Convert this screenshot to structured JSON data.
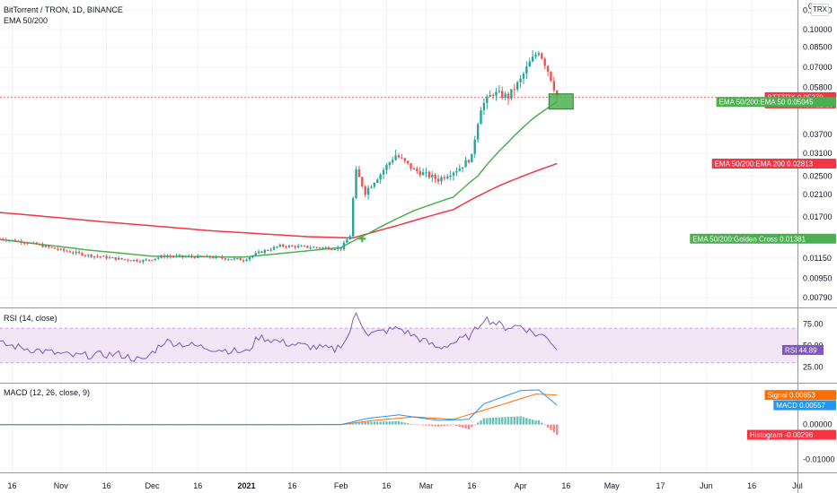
{
  "header": {
    "symbol_title": "BitTorrent / TRON, 1D, BINANCE",
    "indicator_label": "EMA 50/200",
    "currency": "TRX"
  },
  "colors": {
    "up": "#26a69a",
    "down": "#ef5350",
    "ema50": "#4caf50",
    "ema200": "#f23645",
    "rsi_line": "#7e57c2",
    "rsi_band": "#f3e5f5",
    "macd": "#2196f3",
    "signal": "#ff6d00",
    "hist_up": "#26a69a",
    "hist_down": "#ef5350",
    "last_price": "#ef5350",
    "signal_box": "#4caf50",
    "tag_green": "#4caf50",
    "tag_red": "#f23645",
    "tag_blue": "#2196f3",
    "tag_orange": "#ff6d00",
    "tag_purple": "#7e57c2"
  },
  "chart_data": [
    {
      "type": "candlestick",
      "panel": "price",
      "log_scale": true,
      "ylim": [
        0.0072,
        0.1325
      ],
      "y_ticks": [
        "0.12000",
        "0.10000",
        "0.08500",
        "0.07000",
        "0.05800",
        "0.03700",
        "0.03100",
        "0.02500",
        "0.02100",
        "0.01700",
        "0.01150",
        "0.00950",
        "0.00790"
      ],
      "y_tick_values": [
        0.12,
        0.1,
        0.085,
        0.07,
        0.058,
        0.037,
        0.031,
        0.025,
        0.021,
        0.017,
        0.0115,
        0.0095,
        0.0079
      ],
      "top_tick_label": "0.",
      "x_ticks": [
        "16",
        "Nov",
        "16",
        "Dec",
        "16",
        "2021",
        "16",
        "Feb",
        "16",
        "Mar",
        "16",
        "Apr",
        "16",
        "May",
        "17",
        "Jun",
        "16",
        "Jul"
      ],
      "x_tick_dates": [
        "2020-10-16",
        "2020-11-01",
        "2020-11-16",
        "2020-12-01",
        "2020-12-16",
        "2021-01-01",
        "2021-01-16",
        "2021-02-01",
        "2021-02-16",
        "2021-03-01",
        "2021-03-16",
        "2021-04-01",
        "2021-04-16",
        "2021-05-01",
        "2021-05-17",
        "2021-06-01",
        "2021-06-16",
        "2021-07-01"
      ],
      "x_range": [
        "2020-10-12",
        "2021-07-01"
      ],
      "last_date": "2021-04-13",
      "ohlc_anchors": [
        {
          "date": "2020-10-12",
          "close": 0.0138
        },
        {
          "date": "2020-10-20",
          "close": 0.0134
        },
        {
          "date": "2020-11-01",
          "close": 0.0124
        },
        {
          "date": "2020-11-10",
          "close": 0.0118
        },
        {
          "date": "2020-11-20",
          "close": 0.0114
        },
        {
          "date": "2020-11-28",
          "close": 0.0112
        },
        {
          "date": "2020-12-05",
          "close": 0.0117
        },
        {
          "date": "2020-12-20",
          "close": 0.0116
        },
        {
          "date": "2020-12-31",
          "close": 0.0113
        },
        {
          "date": "2021-01-05",
          "close": 0.0121
        },
        {
          "date": "2021-01-12",
          "close": 0.0129
        },
        {
          "date": "2021-01-25",
          "close": 0.0127
        },
        {
          "date": "2021-02-01",
          "close": 0.0126
        },
        {
          "date": "2021-02-04",
          "close": 0.0142
        },
        {
          "date": "2021-02-06",
          "close": 0.026
        },
        {
          "date": "2021-02-09",
          "close": 0.0215
        },
        {
          "date": "2021-02-14",
          "close": 0.0255
        },
        {
          "date": "2021-02-19",
          "close": 0.0305
        },
        {
          "date": "2021-02-25",
          "close": 0.0265
        },
        {
          "date": "2021-03-05",
          "close": 0.0242
        },
        {
          "date": "2021-03-12",
          "close": 0.027
        },
        {
          "date": "2021-03-16",
          "close": 0.03
        },
        {
          "date": "2021-03-19",
          "close": 0.048
        },
        {
          "date": "2021-03-23",
          "close": 0.055
        },
        {
          "date": "2021-03-28",
          "close": 0.053
        },
        {
          "date": "2021-04-01",
          "close": 0.062
        },
        {
          "date": "2021-04-04",
          "close": 0.073
        },
        {
          "date": "2021-04-07",
          "close": 0.082
        },
        {
          "date": "2021-04-10",
          "close": 0.068
        },
        {
          "date": "2021-04-13",
          "close": 0.05279
        }
      ],
      "ema50": [
        {
          "date": "2020-10-12",
          "value": 0.0137
        },
        {
          "date": "2020-11-10",
          "value": 0.0124
        },
        {
          "date": "2020-12-01",
          "value": 0.0117
        },
        {
          "date": "2020-12-31",
          "value": 0.0116
        },
        {
          "date": "2021-01-15",
          "value": 0.0121
        },
        {
          "date": "2021-02-01",
          "value": 0.0127
        },
        {
          "date": "2021-02-10",
          "value": 0.0145
        },
        {
          "date": "2021-02-25",
          "value": 0.018
        },
        {
          "date": "2021-03-10",
          "value": 0.0205
        },
        {
          "date": "2021-03-18",
          "value": 0.025
        },
        {
          "date": "2021-03-28",
          "value": 0.0345
        },
        {
          "date": "2021-04-05",
          "value": 0.043
        },
        {
          "date": "2021-04-13",
          "value": 0.05045
        }
      ],
      "ema200": [
        {
          "date": "2020-10-12",
          "value": 0.0177
        },
        {
          "date": "2020-11-15",
          "value": 0.0162
        },
        {
          "date": "2020-12-20",
          "value": 0.0149
        },
        {
          "date": "2021-01-20",
          "value": 0.0141
        },
        {
          "date": "2021-02-05",
          "value": 0.0139
        },
        {
          "date": "2021-02-20",
          "value": 0.0157
        },
        {
          "date": "2021-03-10",
          "value": 0.0182
        },
        {
          "date": "2021-03-25",
          "value": 0.0228
        },
        {
          "date": "2021-04-13",
          "value": 0.02813
        }
      ],
      "golden_cross": {
        "date": "2021-02-08",
        "value": 0.01381
      },
      "signal_box_date": "2021-04-13",
      "series_tags": [
        {
          "name": "BTTTRX",
          "value": "0.05279",
          "sub": "06:12:28",
          "price": 0.05279,
          "color_key": "tag_red"
        },
        {
          "name": "EMA 50/200:EMA 50",
          "value": "0.05045",
          "price": 0.05045,
          "color_key": "tag_green"
        },
        {
          "name": "EMA 50/200:EMA 200",
          "value": "0.02813",
          "price": 0.02813,
          "color_key": "tag_red"
        },
        {
          "name": "EMA 50/200:Golden Cross",
          "value": "0.01381",
          "price": 0.01381,
          "color_key": "tag_green"
        }
      ]
    },
    {
      "type": "line",
      "panel": "rsi",
      "title": "RSI (14, close)",
      "ylim": [
        7,
        93
      ],
      "y_ticks": [
        "75.00",
        "50.00",
        "25.00"
      ],
      "y_tick_values": [
        75,
        50,
        25
      ],
      "band": [
        30,
        70
      ],
      "last_value": "44.89",
      "last_numeric": 44.89,
      "tag_name": "RSI",
      "anchors": [
        {
          "date": "2020-10-12",
          "value": 52
        },
        {
          "date": "2020-10-25",
          "value": 44
        },
        {
          "date": "2020-11-05",
          "value": 38
        },
        {
          "date": "2020-11-20",
          "value": 40
        },
        {
          "date": "2020-11-28",
          "value": 32
        },
        {
          "date": "2020-12-05",
          "value": 55
        },
        {
          "date": "2020-12-20",
          "value": 47
        },
        {
          "date": "2021-01-01",
          "value": 42
        },
        {
          "date": "2021-01-05",
          "value": 60
        },
        {
          "date": "2021-01-15",
          "value": 52
        },
        {
          "date": "2021-01-30",
          "value": 45
        },
        {
          "date": "2021-02-03",
          "value": 58
        },
        {
          "date": "2021-02-06",
          "value": 87
        },
        {
          "date": "2021-02-10",
          "value": 63
        },
        {
          "date": "2021-02-20",
          "value": 70
        },
        {
          "date": "2021-03-05",
          "value": 47
        },
        {
          "date": "2021-03-12",
          "value": 56
        },
        {
          "date": "2021-03-16",
          "value": 62
        },
        {
          "date": "2021-03-20",
          "value": 82
        },
        {
          "date": "2021-03-27",
          "value": 71
        },
        {
          "date": "2021-04-01",
          "value": 73
        },
        {
          "date": "2021-04-06",
          "value": 63
        },
        {
          "date": "2021-04-10",
          "value": 60
        },
        {
          "date": "2021-04-13",
          "value": 44.89
        }
      ]
    },
    {
      "type": "line",
      "panel": "macd",
      "title": "MACD (12, 26, close, 9)",
      "ylim": [
        -0.0138,
        0.0118
      ],
      "y_ticks": [
        "0.00000",
        "-0.01000"
      ],
      "y_tick_values": [
        0,
        -0.01
      ],
      "macd_anchors": [
        {
          "date": "2020-10-12",
          "value": -5e-05
        },
        {
          "date": "2021-02-01",
          "value": 0.0
        },
        {
          "date": "2021-02-10",
          "value": 0.0018
        },
        {
          "date": "2021-02-20",
          "value": 0.0028
        },
        {
          "date": "2021-03-05",
          "value": 0.0012
        },
        {
          "date": "2021-03-15",
          "value": 0.0015
        },
        {
          "date": "2021-03-20",
          "value": 0.006
        },
        {
          "date": "2021-04-01",
          "value": 0.0098
        },
        {
          "date": "2021-04-07",
          "value": 0.01
        },
        {
          "date": "2021-04-13",
          "value": 0.00557
        }
      ],
      "signal_anchors": [
        {
          "date": "2020-10-12",
          "value": -5e-05
        },
        {
          "date": "2021-02-01",
          "value": 0.0
        },
        {
          "date": "2021-02-12",
          "value": 0.0012
        },
        {
          "date": "2021-02-25",
          "value": 0.0022
        },
        {
          "date": "2021-03-10",
          "value": 0.0015
        },
        {
          "date": "2021-03-25",
          "value": 0.0055
        },
        {
          "date": "2021-04-06",
          "value": 0.0088
        },
        {
          "date": "2021-04-13",
          "value": 0.00853
        }
      ],
      "series_tags": [
        {
          "name": "Signal",
          "value": "0.00853",
          "numeric": 0.00853,
          "color_key": "tag_orange"
        },
        {
          "name": "MACD",
          "value": "0.00557",
          "numeric": 0.00557,
          "color_key": "tag_blue"
        },
        {
          "name": "Histogram",
          "value": "-0.00296",
          "numeric": -0.00296,
          "color_key": "tag_red"
        }
      ]
    }
  ]
}
